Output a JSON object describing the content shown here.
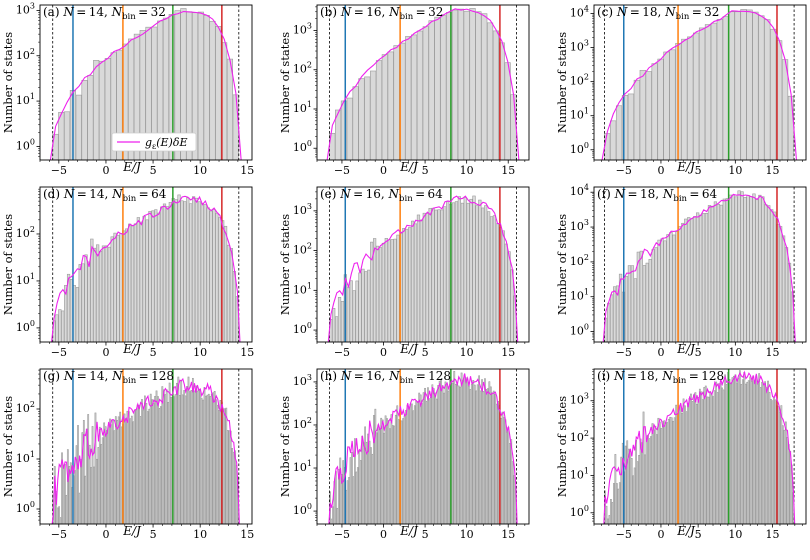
{
  "figure": {
    "ylabel": "Number of states",
    "xlabel": "E/J",
    "legend_label": "g_ε(E)δE",
    "legend_label_main": "g",
    "legend_label_sub": "ε",
    "legend_label_rest": "(E)δE"
  },
  "colors": {
    "bar_fill": "#d9d9d9",
    "bar_edge": "#9a9a9a",
    "curve": "#ee22ee",
    "line_blue": "#1f77b4",
    "line_orange": "#ff7f0e",
    "line_green": "#2ca02c",
    "line_red": "#d62728"
  },
  "chart_data": [
    {
      "id": "a",
      "panel_label": "(a)",
      "N": 14,
      "Nbin": 32,
      "title": "N = 14, N_bin = 32",
      "type": "bar",
      "yscale": "log",
      "xlim": [
        -7,
        15.5
      ],
      "ylim_exp": [
        -0.3,
        3.12
      ],
      "xticks": [
        -5,
        0,
        5,
        10,
        15
      ],
      "yticks_exp": [
        0,
        1,
        2,
        3
      ],
      "edge_min": -5.65,
      "edge_max": 14.1,
      "peak": 8.0,
      "peak_exp": 3.0,
      "vlines": {
        "blue": -3.5,
        "orange": 1.8,
        "green": 7.1,
        "red": 12.3
      },
      "show_legend": true,
      "show_xlabel": true
    },
    {
      "id": "b",
      "panel_label": "(b)",
      "N": 16,
      "Nbin": 32,
      "title": "N = 16, N_bin = 32",
      "type": "bar",
      "yscale": "log",
      "xlim": [
        -8,
        17.5
      ],
      "ylim_exp": [
        -0.3,
        3.65
      ],
      "xticks": [
        -5,
        0,
        5,
        10,
        15
      ],
      "yticks_exp": [
        0,
        1,
        2,
        3
      ],
      "edge_min": -6.5,
      "edge_max": 16.0,
      "peak": 8.6,
      "peak_exp": 3.55,
      "vlines": {
        "blue": -4.6,
        "orange": 2.0,
        "green": 8.1,
        "red": 14.0
      },
      "show_legend": false,
      "show_xlabel": true
    },
    {
      "id": "c",
      "panel_label": "(c)",
      "N": 18,
      "Nbin": 32,
      "title": "N = 18, N_bin = 32",
      "type": "bar",
      "yscale": "log",
      "xlim": [
        -9,
        19.5
      ],
      "ylim_exp": [
        -0.3,
        4.25
      ],
      "xticks": [
        -5,
        0,
        5,
        10,
        15
      ],
      "yticks_exp": [
        0,
        1,
        2,
        3,
        4
      ],
      "edge_min": -7.6,
      "edge_max": 17.9,
      "peak": 10.0,
      "peak_exp": 4.1,
      "vlines": {
        "blue": -5.0,
        "orange": 2.3,
        "green": 9.1,
        "red": 15.6
      },
      "show_legend": false,
      "show_xlabel": true
    },
    {
      "id": "d",
      "panel_label": "(d)",
      "N": 14,
      "Nbin": 64,
      "title": "N = 14, N_bin = 64",
      "type": "bar",
      "yscale": "log",
      "xlim": [
        -7,
        15.5
      ],
      "ylim_exp": [
        -0.3,
        3.0
      ],
      "xticks": [
        -5,
        0,
        5,
        10,
        15
      ],
      "yticks_exp": [
        0,
        1,
        2
      ],
      "edge_min": -5.65,
      "edge_max": 14.1,
      "peak": 8.0,
      "peak_exp": 2.75,
      "vlines": {
        "blue": -3.5,
        "orange": 1.8,
        "green": 7.1,
        "red": 12.3
      },
      "show_legend": false,
      "show_xlabel": true
    },
    {
      "id": "e",
      "panel_label": "(e)",
      "N": 16,
      "Nbin": 64,
      "title": "N = 16, N_bin = 64",
      "type": "bar",
      "yscale": "log",
      "xlim": [
        -8,
        17.5
      ],
      "ylim_exp": [
        -0.3,
        3.6
      ],
      "xticks": [
        -5,
        0,
        5,
        10,
        15
      ],
      "yticks_exp": [
        0,
        1,
        2,
        3
      ],
      "edge_min": -6.5,
      "edge_max": 16.0,
      "peak": 8.6,
      "peak_exp": 3.3,
      "vlines": {
        "blue": -4.6,
        "orange": 2.0,
        "green": 8.1,
        "red": 14.0
      },
      "show_legend": false,
      "show_xlabel": true
    },
    {
      "id": "f",
      "panel_label": "(f)",
      "N": 18,
      "Nbin": 64,
      "title": "N = 18, N_bin = 64",
      "type": "bar",
      "yscale": "log",
      "xlim": [
        -9,
        19.5
      ],
      "ylim_exp": [
        -0.3,
        4.15
      ],
      "xticks": [
        -5,
        0,
        5,
        10,
        15
      ],
      "yticks_exp": [
        0,
        1,
        2,
        3,
        4
      ],
      "edge_min": -7.6,
      "edge_max": 17.9,
      "peak": 10.0,
      "peak_exp": 3.95,
      "vlines": {
        "blue": -5.0,
        "orange": 2.3,
        "green": 9.1,
        "red": 15.6
      },
      "show_legend": false,
      "show_xlabel": true
    },
    {
      "id": "g",
      "panel_label": "(g)",
      "N": 14,
      "Nbin": 128,
      "title": "N = 14, N_bin = 128",
      "type": "bar",
      "yscale": "log",
      "xlim": [
        -7,
        15.5
      ],
      "ylim_exp": [
        -0.3,
        2.8
      ],
      "xticks": [
        -5,
        0,
        5,
        10,
        15
      ],
      "yticks_exp": [
        0,
        1,
        2
      ],
      "edge_min": -5.65,
      "edge_max": 14.1,
      "peak": 8.0,
      "peak_exp": 2.45,
      "vlines": {
        "blue": -3.5,
        "orange": 1.8,
        "green": 7.1,
        "red": 12.3
      },
      "show_legend": false,
      "show_xlabel": true
    },
    {
      "id": "h",
      "panel_label": "(h)",
      "N": 16,
      "Nbin": 128,
      "title": "N = 16, N_bin = 128",
      "type": "bar",
      "yscale": "log",
      "xlim": [
        -8,
        17.5
      ],
      "ylim_exp": [
        -0.3,
        3.3
      ],
      "xticks": [
        -5,
        0,
        5,
        10,
        15
      ],
      "yticks_exp": [
        0,
        1,
        2,
        3
      ],
      "edge_min": -6.5,
      "edge_max": 16.0,
      "peak": 8.6,
      "peak_exp": 3.05,
      "vlines": {
        "blue": -4.6,
        "orange": 2.0,
        "green": 8.1,
        "red": 14.0
      },
      "show_legend": false,
      "show_xlabel": true
    },
    {
      "id": "i",
      "panel_label": "(i)",
      "N": 18,
      "Nbin": 128,
      "title": "N = 18, N_bin = 128",
      "type": "bar",
      "yscale": "log",
      "xlim": [
        -9,
        19.5
      ],
      "ylim_exp": [
        -0.3,
        3.85
      ],
      "xticks": [
        -5,
        0,
        5,
        10,
        15
      ],
      "yticks_exp": [
        0,
        1,
        2,
        3
      ],
      "edge_min": -7.6,
      "edge_max": 17.9,
      "peak": 10.0,
      "peak_exp": 3.65,
      "vlines": {
        "blue": -5.0,
        "orange": 2.3,
        "green": 9.1,
        "red": 15.6
      },
      "show_legend": false,
      "show_xlabel": true
    }
  ]
}
